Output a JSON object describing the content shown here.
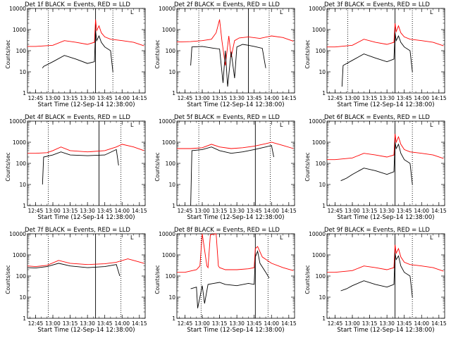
{
  "figure": {
    "xlabel": "Start Time (12-Sep-14 12:38:00)",
    "ylabel": "Counts/sec",
    "x_ticks": [
      "12:45",
      "13:00",
      "13:15",
      "13:30",
      "13:45",
      "14:00",
      "14:15"
    ],
    "y_ticks": [
      "1",
      "10",
      "100",
      "1000",
      "10000"
    ],
    "corner_marker": "L"
  },
  "colors": {
    "events": "#000000",
    "lld": "#ff0000",
    "axes": "#000000"
  },
  "chart_data": [
    {
      "type": "line",
      "title": "Det 1f BLACK = Events, RED = LLD",
      "xlabel": "Start Time (12-Sep-14 12:38:00)",
      "ylabel": "Counts/sec",
      "yscale": "log",
      "xlim": [
        "12:38",
        "14:20"
      ],
      "ylim": [
        1,
        10000
      ],
      "vlines_dotted": [
        "12:56",
        "13:52"
      ],
      "vlines_solid": [
        "13:37"
      ],
      "series": [
        {
          "name": "Events",
          "color": "#000000",
          "x": [
            "12:51",
            "12:52",
            "13:00",
            "13:10",
            "13:20",
            "13:30",
            "13:36",
            "13:37",
            "13:38",
            "13:40",
            "13:42",
            "13:45",
            "13:50",
            "13:52"
          ],
          "y": [
            15,
            18,
            30,
            60,
            40,
            25,
            30,
            900,
            300,
            500,
            250,
            150,
            100,
            10
          ]
        },
        {
          "name": "LLD",
          "color": "#ff0000",
          "x": [
            "12:38",
            "12:45",
            "13:00",
            "13:10",
            "13:20",
            "13:30",
            "13:36",
            "13:37",
            "13:38",
            "13:40",
            "13:42",
            "13:45",
            "13:50",
            "14:00",
            "14:10",
            "14:19"
          ],
          "y": [
            160,
            160,
            180,
            300,
            250,
            200,
            250,
            3000,
            900,
            1500,
            700,
            450,
            350,
            300,
            250,
            170
          ]
        }
      ]
    },
    {
      "type": "line",
      "title": "Det 2f BLACK = Events, RED = LLD",
      "xlabel": "Start Time (12-Sep-14 12:38:00)",
      "ylabel": "Counts/sec",
      "yscale": "log",
      "xlim": [
        "12:38",
        "14:20"
      ],
      "ylim": [
        1,
        10000
      ],
      "vlines_dotted": [
        "12:57",
        "13:58"
      ],
      "vlines_solid": [
        "13:40"
      ],
      "series": [
        {
          "name": "Events",
          "color": "#000000",
          "x": [
            "12:50",
            "12:51",
            "13:00",
            "13:10",
            "13:15",
            "13:18",
            "13:20",
            "13:22",
            "13:25",
            "13:28",
            "13:30",
            "13:35",
            "13:40",
            "13:45",
            "13:52",
            "13:55"
          ],
          "y": [
            20,
            150,
            160,
            130,
            120,
            3,
            100,
            2,
            90,
            5,
            150,
            200,
            180,
            160,
            130,
            15
          ]
        },
        {
          "name": "LLD",
          "color": "#ff0000",
          "x": [
            "12:38",
            "12:50",
            "13:00",
            "13:08",
            "13:12",
            "13:15",
            "13:17",
            "13:20",
            "13:23",
            "13:25",
            "13:28",
            "13:32",
            "13:40",
            "13:50",
            "14:00",
            "14:10",
            "14:19"
          ],
          "y": [
            260,
            270,
            300,
            350,
            700,
            3000,
            300,
            20,
            500,
            50,
            300,
            400,
            450,
            380,
            500,
            420,
            280
          ]
        }
      ]
    },
    {
      "type": "line",
      "title": "Det 3f BLACK = Events, RED = LLD",
      "xlabel": "Start Time (12-Sep-14 12:38:00)",
      "ylabel": "Counts/sec",
      "yscale": "log",
      "xlim": [
        "12:38",
        "14:20"
      ],
      "ylim": [
        1,
        10000
      ],
      "vlines_dotted": [
        "12:56",
        "13:52"
      ],
      "vlines_solid": [
        "13:37"
      ],
      "series": [
        {
          "name": "Events",
          "color": "#000000",
          "x": [
            "12:51",
            "12:52",
            "13:00",
            "13:10",
            "13:20",
            "13:30",
            "13:36",
            "13:37",
            "13:38",
            "13:40",
            "13:42",
            "13:45",
            "13:50",
            "13:52"
          ],
          "y": [
            2,
            20,
            35,
            70,
            45,
            30,
            40,
            700,
            300,
            500,
            250,
            150,
            100,
            10
          ]
        },
        {
          "name": "LLD",
          "color": "#ff0000",
          "x": [
            "12:38",
            "12:45",
            "13:00",
            "13:10",
            "13:20",
            "13:30",
            "13:36",
            "13:37",
            "13:38",
            "13:40",
            "13:42",
            "13:45",
            "13:50",
            "14:00",
            "14:10",
            "14:19"
          ],
          "y": [
            150,
            150,
            180,
            350,
            250,
            200,
            250,
            2000,
            800,
            1500,
            700,
            450,
            350,
            300,
            250,
            170
          ]
        }
      ]
    },
    {
      "type": "line",
      "title": "Det 4f BLACK = Events, RED = LLD",
      "xlabel": "Start Time (12-Sep-14 12:38:00)",
      "ylabel": "Counts/sec",
      "yscale": "log",
      "xlim": [
        "12:38",
        "14:20"
      ],
      "ylim": [
        1,
        10000
      ],
      "vlines_dotted": [
        "12:56",
        "13:59"
      ],
      "vlines_solid": [
        "13:40"
      ],
      "series": [
        {
          "name": "Events",
          "color": "#000000",
          "x": [
            "12:51",
            "12:52",
            "13:00",
            "13:07",
            "13:15",
            "13:30",
            "13:45",
            "13:55",
            "13:57"
          ],
          "y": [
            10,
            200,
            250,
            350,
            250,
            230,
            250,
            450,
            80
          ]
        },
        {
          "name": "LLD",
          "color": "#ff0000",
          "x": [
            "12:38",
            "12:45",
            "12:55",
            "13:00",
            "13:07",
            "13:15",
            "13:30",
            "13:45",
            "13:55",
            "14:00",
            "14:10",
            "14:19"
          ],
          "y": [
            300,
            300,
            320,
            400,
            600,
            400,
            350,
            400,
            600,
            800,
            600,
            400
          ]
        }
      ]
    },
    {
      "type": "line",
      "title": "Det 5f BLACK = Events, RED = LLD",
      "xlabel": "Start Time (12-Sep-14 12:38:00)",
      "ylabel": "Counts/sec",
      "yscale": "log",
      "xlim": [
        "12:38",
        "14:20"
      ],
      "ylim": [
        1,
        10000
      ],
      "vlines_dotted": [
        "12:57",
        "13:59"
      ],
      "vlines_solid": [
        "13:46"
      ],
      "series": [
        {
          "name": "Events",
          "color": "#000000",
          "x": [
            "12:50",
            "12:51",
            "13:00",
            "13:08",
            "13:15",
            "13:25",
            "13:35",
            "13:45",
            "13:55",
            "14:00",
            "14:02"
          ],
          "y": [
            1,
            400,
            450,
            600,
            400,
            300,
            350,
            450,
            600,
            700,
            200
          ]
        },
        {
          "name": "LLD",
          "color": "#ff0000",
          "x": [
            "12:38",
            "12:50",
            "13:00",
            "13:08",
            "13:15",
            "13:25",
            "13:35",
            "13:45",
            "13:55",
            "14:00",
            "14:10",
            "14:19"
          ],
          "y": [
            500,
            500,
            550,
            800,
            600,
            500,
            550,
            650,
            850,
            1000,
            700,
            500
          ]
        }
      ]
    },
    {
      "type": "line",
      "title": "Det 6f BLACK = Events, RED = LLD",
      "xlabel": "Start Time (12-Sep-14 12:38:00)",
      "ylabel": "Counts/sec",
      "yscale": "log",
      "xlim": [
        "12:38",
        "14:20"
      ],
      "ylim": [
        1,
        10000
      ],
      "vlines_dotted": [
        "13:52"
      ],
      "vlines_solid": [
        "13:37"
      ],
      "series": [
        {
          "name": "Events",
          "color": "#000000",
          "x": [
            "12:50",
            "12:55",
            "13:00",
            "13:10",
            "13:20",
            "13:30",
            "13:36",
            "13:37",
            "13:38",
            "13:40",
            "13:42",
            "13:45",
            "13:50",
            "13:52"
          ],
          "y": [
            15,
            20,
            30,
            60,
            45,
            30,
            40,
            1000,
            500,
            800,
            300,
            150,
            100,
            10
          ]
        },
        {
          "name": "LLD",
          "color": "#ff0000",
          "x": [
            "12:38",
            "12:45",
            "13:00",
            "13:10",
            "13:20",
            "13:30",
            "13:36",
            "13:37",
            "13:38",
            "13:40",
            "13:42",
            "13:45",
            "13:50",
            "14:00",
            "14:10",
            "14:19"
          ],
          "y": [
            150,
            150,
            180,
            300,
            250,
            200,
            250,
            2500,
            1000,
            1800,
            800,
            450,
            350,
            300,
            250,
            170
          ]
        }
      ]
    },
    {
      "type": "line",
      "title": "Det 7f BLACK = Events, RED = LLD",
      "xlabel": "Start Time (12-Sep-14 12:38:00)",
      "ylabel": "Counts/sec",
      "yscale": "log",
      "xlim": [
        "12:38",
        "14:20"
      ],
      "ylim": [
        1,
        10000
      ],
      "vlines_dotted": [
        "12:56",
        "13:59"
      ],
      "vlines_solid": [
        "13:37"
      ],
      "series": [
        {
          "name": "Events",
          "color": "#000000",
          "x": [
            "12:38",
            "12:45",
            "12:55",
            "13:05",
            "13:15",
            "13:30",
            "13:45",
            "13:55",
            "13:58"
          ],
          "y": [
            250,
            240,
            280,
            400,
            300,
            250,
            280,
            350,
            100
          ]
        },
        {
          "name": "LLD",
          "color": "#ff0000",
          "x": [
            "12:38",
            "12:45",
            "12:55",
            "13:05",
            "13:15",
            "13:30",
            "13:45",
            "13:55",
            "14:05",
            "14:10",
            "14:19"
          ],
          "y": [
            300,
            280,
            320,
            550,
            400,
            350,
            380,
            450,
            650,
            550,
            400
          ]
        }
      ]
    },
    {
      "type": "line",
      "title": "Det 8f BLACK = Events, RED = LLD",
      "xlabel": "Start Time (12-Sep-14 12:38:00)",
      "ylabel": "Counts/sec",
      "yscale": "log",
      "xlim": [
        "12:38",
        "14:20"
      ],
      "ylim": [
        1,
        10000
      ],
      "vlines_dotted": [
        "12:59",
        "13:57"
      ],
      "vlines_solid": [
        "13:46"
      ],
      "series": [
        {
          "name": "Events",
          "color": "#000000",
          "x": [
            "12:50",
            "12:55",
            "12:56",
            "13:00",
            "13:02",
            "13:05",
            "13:10",
            "13:15",
            "13:20",
            "13:30",
            "13:40",
            "13:45",
            "13:46",
            "13:48",
            "13:50",
            "13:55",
            "13:58"
          ],
          "y": [
            25,
            30,
            3,
            35,
            5,
            40,
            45,
            50,
            40,
            35,
            45,
            40,
            800,
            1500,
            400,
            150,
            80
          ]
        },
        {
          "name": "LLD",
          "color": "#ff0000",
          "x": [
            "12:38",
            "12:45",
            "12:55",
            "12:58",
            "13:00",
            "13:04",
            "13:05",
            "13:07",
            "13:12",
            "13:14",
            "13:15",
            "13:20",
            "13:30",
            "13:40",
            "13:45",
            "13:46",
            "13:48",
            "13:52",
            "14:00",
            "14:10",
            "14:19"
          ],
          "y": [
            150,
            150,
            200,
            300,
            10000,
            300,
            250,
            9000,
            10000,
            300,
            250,
            200,
            200,
            220,
            250,
            2000,
            2500,
            800,
            400,
            250,
            180
          ]
        }
      ]
    },
    {
      "type": "line",
      "title": "Det 9f BLACK = Events, RED = LLD",
      "xlabel": "Start Time (12-Sep-14 12:38:00)",
      "ylabel": "Counts/sec",
      "yscale": "log",
      "xlim": [
        "12:38",
        "14:20"
      ],
      "ylim": [
        1,
        10000
      ],
      "vlines_dotted": [
        "13:52"
      ],
      "vlines_solid": [
        "13:37"
      ],
      "series": [
        {
          "name": "Events",
          "color": "#000000",
          "x": [
            "12:50",
            "12:55",
            "13:00",
            "13:10",
            "13:20",
            "13:30",
            "13:36",
            "13:37",
            "13:38",
            "13:40",
            "13:42",
            "13:45",
            "13:50",
            "13:52"
          ],
          "y": [
            20,
            25,
            35,
            60,
            40,
            30,
            40,
            1200,
            600,
            900,
            300,
            150,
            100,
            10
          ]
        },
        {
          "name": "LLD",
          "color": "#ff0000",
          "x": [
            "12:38",
            "12:45",
            "13:00",
            "13:10",
            "13:20",
            "13:30",
            "13:36",
            "13:37",
            "13:38",
            "13:40",
            "13:42",
            "13:45",
            "13:50",
            "14:00",
            "14:10",
            "14:19"
          ],
          "y": [
            150,
            150,
            180,
            300,
            250,
            200,
            250,
            3000,
            1200,
            2000,
            800,
            450,
            350,
            300,
            250,
            170
          ]
        }
      ]
    }
  ]
}
